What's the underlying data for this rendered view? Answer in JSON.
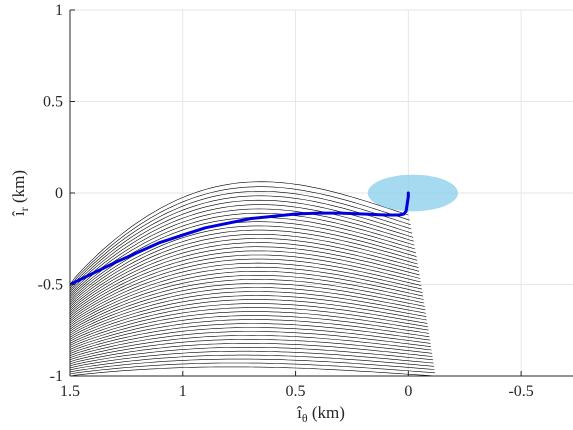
{
  "chart_data": {
    "type": "line",
    "title": "",
    "xlabel": {
      "symbol": "î",
      "subscript": "θ",
      "unit": "(km)"
    },
    "ylabel": {
      "symbol": "î",
      "subscript": "r",
      "unit": "(km)"
    },
    "xlim": [
      1.5,
      -0.73
    ],
    "ylim": [
      -1,
      1
    ],
    "x_reversed": true,
    "xticks": [
      1.5,
      1,
      0.5,
      0,
      -0.5
    ],
    "xtick_labels": [
      "1.5",
      "1",
      "0.5",
      "0",
      "-0.5"
    ],
    "yticks": [
      -1,
      -0.5,
      0,
      0.5,
      1
    ],
    "ytick_labels": [
      "-1",
      "-0.5",
      "0",
      "0.5",
      "1"
    ],
    "grid": true,
    "colors": {
      "highlight": "#0000dd",
      "family": "#000000",
      "region": "#87ceeb"
    },
    "highlight_path": [
      [
        1.5,
        -0.5
      ],
      [
        1.3,
        -0.38
      ],
      [
        1.1,
        -0.27
      ],
      [
        0.9,
        -0.19
      ],
      [
        0.7,
        -0.14
      ],
      [
        0.5,
        -0.115
      ],
      [
        0.4,
        -0.11
      ],
      [
        0.3,
        -0.11
      ],
      [
        0.2,
        -0.115
      ],
      [
        0.1,
        -0.12
      ],
      [
        0.04,
        -0.12
      ],
      [
        0.02,
        -0.115
      ],
      [
        0.01,
        -0.1
      ],
      [
        0.005,
        -0.06
      ],
      [
        0.0,
        -0.02
      ],
      [
        0.0,
        0.0
      ]
    ],
    "region": {
      "type": "ellipse",
      "cx": -0.02,
      "cy": 0.0,
      "rx": 0.2,
      "ry": 0.1
    },
    "trajectory_family": {
      "count": 46,
      "start_edge": {
        "x": 1.5,
        "y_from": -0.5,
        "y_to": -1.0
      },
      "end_x_range": [
        0.0,
        -0.12
      ],
      "end_y_range": [
        -0.12,
        -1.0
      ]
    }
  }
}
